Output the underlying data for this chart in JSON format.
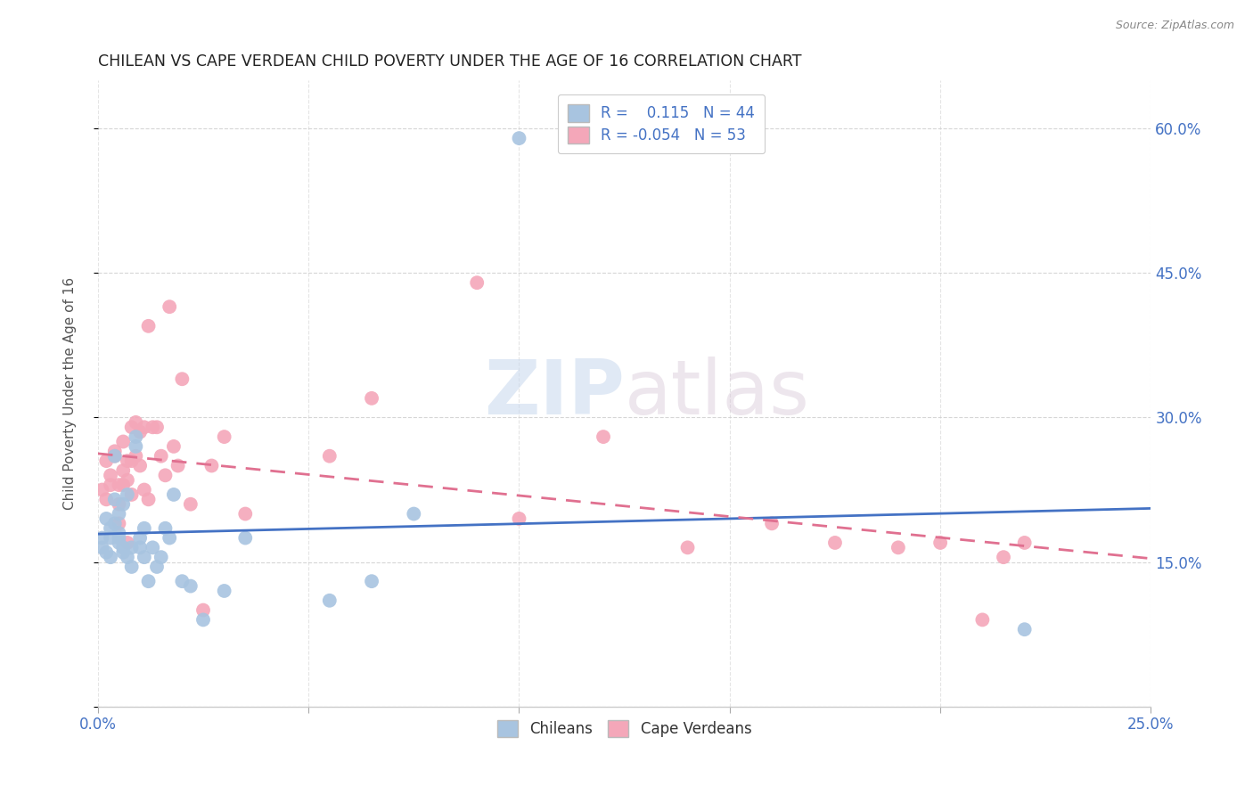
{
  "title": "CHILEAN VS CAPE VERDEAN CHILD POVERTY UNDER THE AGE OF 16 CORRELATION CHART",
  "source": "Source: ZipAtlas.com",
  "ylabel": "Child Poverty Under the Age of 16",
  "xlim": [
    0.0,
    0.25
  ],
  "ylim": [
    0.0,
    0.65
  ],
  "xticks": [
    0.0,
    0.05,
    0.1,
    0.15,
    0.2,
    0.25
  ],
  "yticks": [
    0.0,
    0.15,
    0.3,
    0.45,
    0.6
  ],
  "ytick_labels_right": [
    "",
    "15.0%",
    "30.0%",
    "45.0%",
    "60.0%"
  ],
  "xtick_labels": [
    "0.0%",
    "",
    "",
    "",
    "",
    "25.0%"
  ],
  "chilean_color": "#a8c4e0",
  "cape_verdean_color": "#f4a7b9",
  "chilean_line_color": "#4472c4",
  "cape_verdean_line_color": "#e07090",
  "r_chilean": 0.115,
  "n_chilean": 44,
  "r_cape_verdean": -0.054,
  "n_cape_verdean": 53,
  "chilean_x": [
    0.001,
    0.001,
    0.002,
    0.002,
    0.003,
    0.003,
    0.003,
    0.004,
    0.004,
    0.004,
    0.005,
    0.005,
    0.005,
    0.005,
    0.006,
    0.006,
    0.006,
    0.007,
    0.007,
    0.008,
    0.008,
    0.009,
    0.009,
    0.01,
    0.01,
    0.011,
    0.011,
    0.012,
    0.013,
    0.014,
    0.015,
    0.016,
    0.017,
    0.018,
    0.02,
    0.022,
    0.025,
    0.03,
    0.035,
    0.055,
    0.065,
    0.075,
    0.1,
    0.22
  ],
  "chilean_y": [
    0.165,
    0.175,
    0.16,
    0.195,
    0.175,
    0.185,
    0.155,
    0.215,
    0.26,
    0.19,
    0.17,
    0.18,
    0.2,
    0.175,
    0.165,
    0.21,
    0.16,
    0.155,
    0.22,
    0.145,
    0.165,
    0.28,
    0.27,
    0.175,
    0.165,
    0.155,
    0.185,
    0.13,
    0.165,
    0.145,
    0.155,
    0.185,
    0.175,
    0.22,
    0.13,
    0.125,
    0.09,
    0.12,
    0.175,
    0.11,
    0.13,
    0.2,
    0.59,
    0.08
  ],
  "cape_verdean_x": [
    0.001,
    0.002,
    0.002,
    0.003,
    0.003,
    0.004,
    0.004,
    0.005,
    0.005,
    0.005,
    0.006,
    0.006,
    0.006,
    0.007,
    0.007,
    0.007,
    0.008,
    0.008,
    0.008,
    0.009,
    0.009,
    0.01,
    0.01,
    0.011,
    0.011,
    0.012,
    0.012,
    0.013,
    0.014,
    0.015,
    0.016,
    0.017,
    0.018,
    0.019,
    0.02,
    0.022,
    0.025,
    0.027,
    0.03,
    0.035,
    0.055,
    0.065,
    0.09,
    0.1,
    0.12,
    0.14,
    0.16,
    0.175,
    0.19,
    0.2,
    0.21,
    0.215,
    0.22
  ],
  "cape_verdean_y": [
    0.225,
    0.215,
    0.255,
    0.24,
    0.23,
    0.265,
    0.26,
    0.19,
    0.21,
    0.23,
    0.275,
    0.245,
    0.23,
    0.235,
    0.17,
    0.255,
    0.255,
    0.22,
    0.29,
    0.26,
    0.295,
    0.285,
    0.25,
    0.29,
    0.225,
    0.215,
    0.395,
    0.29,
    0.29,
    0.26,
    0.24,
    0.415,
    0.27,
    0.25,
    0.34,
    0.21,
    0.1,
    0.25,
    0.28,
    0.2,
    0.26,
    0.32,
    0.44,
    0.195,
    0.28,
    0.165,
    0.19,
    0.17,
    0.165,
    0.17,
    0.09,
    0.155,
    0.17
  ],
  "watermark_zip": "ZIP",
  "watermark_atlas": "atlas",
  "background_color": "#ffffff",
  "grid_color": "#cccccc"
}
